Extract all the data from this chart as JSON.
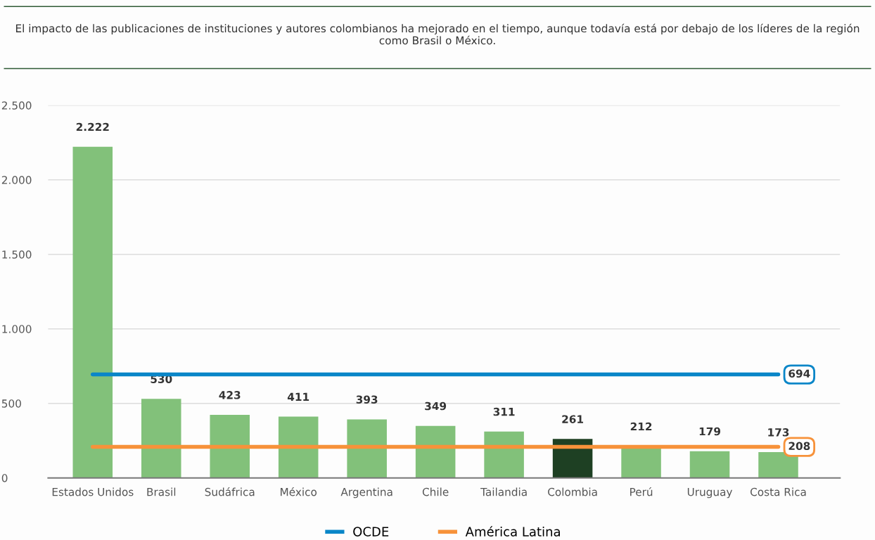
{
  "chart_data": {
    "type": "bar",
    "title": "El impacto de las publicaciones de instituciones y autores colombianos ha mejorado en el tiempo, aunque todavía está por debajo de los líderes de la región como Brasil o México.",
    "categories": [
      "Estados Unidos",
      "Brasil",
      "Sudáfrica",
      "México",
      "Argentina",
      "Chile",
      "Tailandia",
      "Colombia",
      "Perú",
      "Uruguay",
      "Costa Rica"
    ],
    "series": [
      {
        "colors": [
          "#82c17a",
          "#82c17a",
          "#82c17a",
          "#82c17a",
          "#82c17a",
          "#82c17a",
          "#82c17a",
          "#1e4023",
          "#82c17a",
          "#82c17a",
          "#82c17a"
        ],
        "values": [
          2222,
          530,
          423,
          411,
          393,
          349,
          311,
          261,
          212,
          179,
          173
        ],
        "value_labels": [
          "2.222",
          "530",
          "423",
          "411",
          "393",
          "349",
          "311",
          "261",
          "212",
          "179",
          "173"
        ]
      },
      {
        "type": "line",
        "name": "OCDE",
        "color": "#0a86c8",
        "values": [
          694,
          694,
          694,
          694,
          694,
          694,
          694,
          694,
          694,
          694,
          694
        ],
        "value_labels": [
          null,
          null,
          null,
          null,
          null,
          null,
          null,
          null,
          null,
          null,
          "694"
        ]
      },
      {
        "type": "line",
        "name": "América Latina",
        "color": "#f7923a",
        "values": [
          208,
          208,
          208,
          208,
          208,
          208,
          208,
          208,
          208,
          208,
          208
        ],
        "value_labels": [
          null,
          null,
          null,
          null,
          null,
          null,
          null,
          null,
          null,
          null,
          "208"
        ]
      }
    ],
    "ylim": [
      0,
      2500
    ],
    "yticks": [
      0,
      {
        "value": 500,
        "label": "500"
      },
      {
        "value": 1000,
        "label": "1.000"
      },
      {
        "value": 1500,
        "label": "1.500"
      },
      {
        "value": 2000,
        "label": "2.000"
      },
      {
        "value": 2500,
        "label": "2.500"
      }
    ],
    "grid": "y",
    "legend": "bottom",
    "marker": "none",
    "line_style": "solid"
  }
}
